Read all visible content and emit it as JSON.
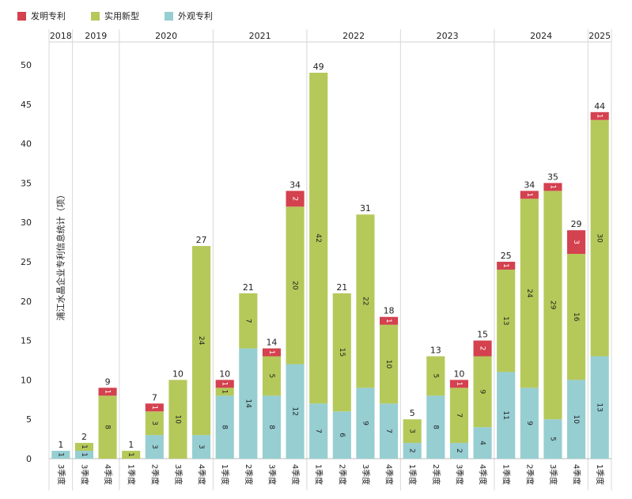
{
  "legend": [
    {
      "name": "发明专利",
      "color": "#d4414f"
    },
    {
      "name": "实用新型",
      "color": "#b5c95a"
    },
    {
      "name": "外观专利",
      "color": "#96ced2"
    }
  ],
  "chart_data": {
    "type": "bar",
    "stacked": true,
    "ylabel": "浦江水晶企业专利信息统计（项）",
    "ylim": [
      0,
      52
    ],
    "yticks": [
      0,
      5,
      10,
      15,
      20,
      25,
      30,
      35,
      40,
      45,
      50
    ],
    "years": [
      {
        "label": "2018",
        "count": 1
      },
      {
        "label": "2019",
        "count": 2
      },
      {
        "label": "2020",
        "count": 4
      },
      {
        "label": "2021",
        "count": 4
      },
      {
        "label": "2022",
        "count": 4
      },
      {
        "label": "2023",
        "count": 4
      },
      {
        "label": "2024",
        "count": 4
      },
      {
        "label": "2025",
        "count": 1
      }
    ],
    "categories": [
      "3季度",
      "3季度",
      "4季度",
      "1季度",
      "2季度",
      "3季度",
      "4季度",
      "1季度",
      "2季度",
      "3季度",
      "4季度",
      "1季度",
      "2季度",
      "3季度",
      "4季度",
      "1季度",
      "2季度",
      "3季度",
      "4季度",
      "1季度",
      "2季度",
      "3季度",
      "4季度",
      "1季度"
    ],
    "series": [
      {
        "name": "外观专利",
        "color": "#96ced2",
        "values": [
          1,
          1,
          0,
          0,
          3,
          0,
          3,
          8,
          14,
          8,
          12,
          7,
          6,
          9,
          7,
          2,
          8,
          2,
          4,
          11,
          9,
          5,
          10,
          13
        ]
      },
      {
        "name": "实用新型",
        "color": "#b5c95a",
        "values": [
          0,
          1,
          8,
          1,
          3,
          10,
          24,
          1,
          7,
          5,
          20,
          42,
          15,
          22,
          10,
          3,
          5,
          7,
          9,
          13,
          24,
          29,
          16,
          30
        ]
      },
      {
        "name": "发明专利",
        "color": "#d4414f",
        "values": [
          0,
          0,
          1,
          0,
          1,
          0,
          0,
          1,
          0,
          1,
          2,
          0,
          0,
          0,
          1,
          0,
          0,
          1,
          2,
          1,
          1,
          1,
          3,
          1
        ]
      }
    ],
    "totals": [
      1,
      2,
      9,
      1,
      7,
      10,
      27,
      10,
      21,
      14,
      34,
      49,
      21,
      31,
      18,
      5,
      13,
      10,
      15,
      25,
      34,
      35,
      29,
      44
    ]
  }
}
